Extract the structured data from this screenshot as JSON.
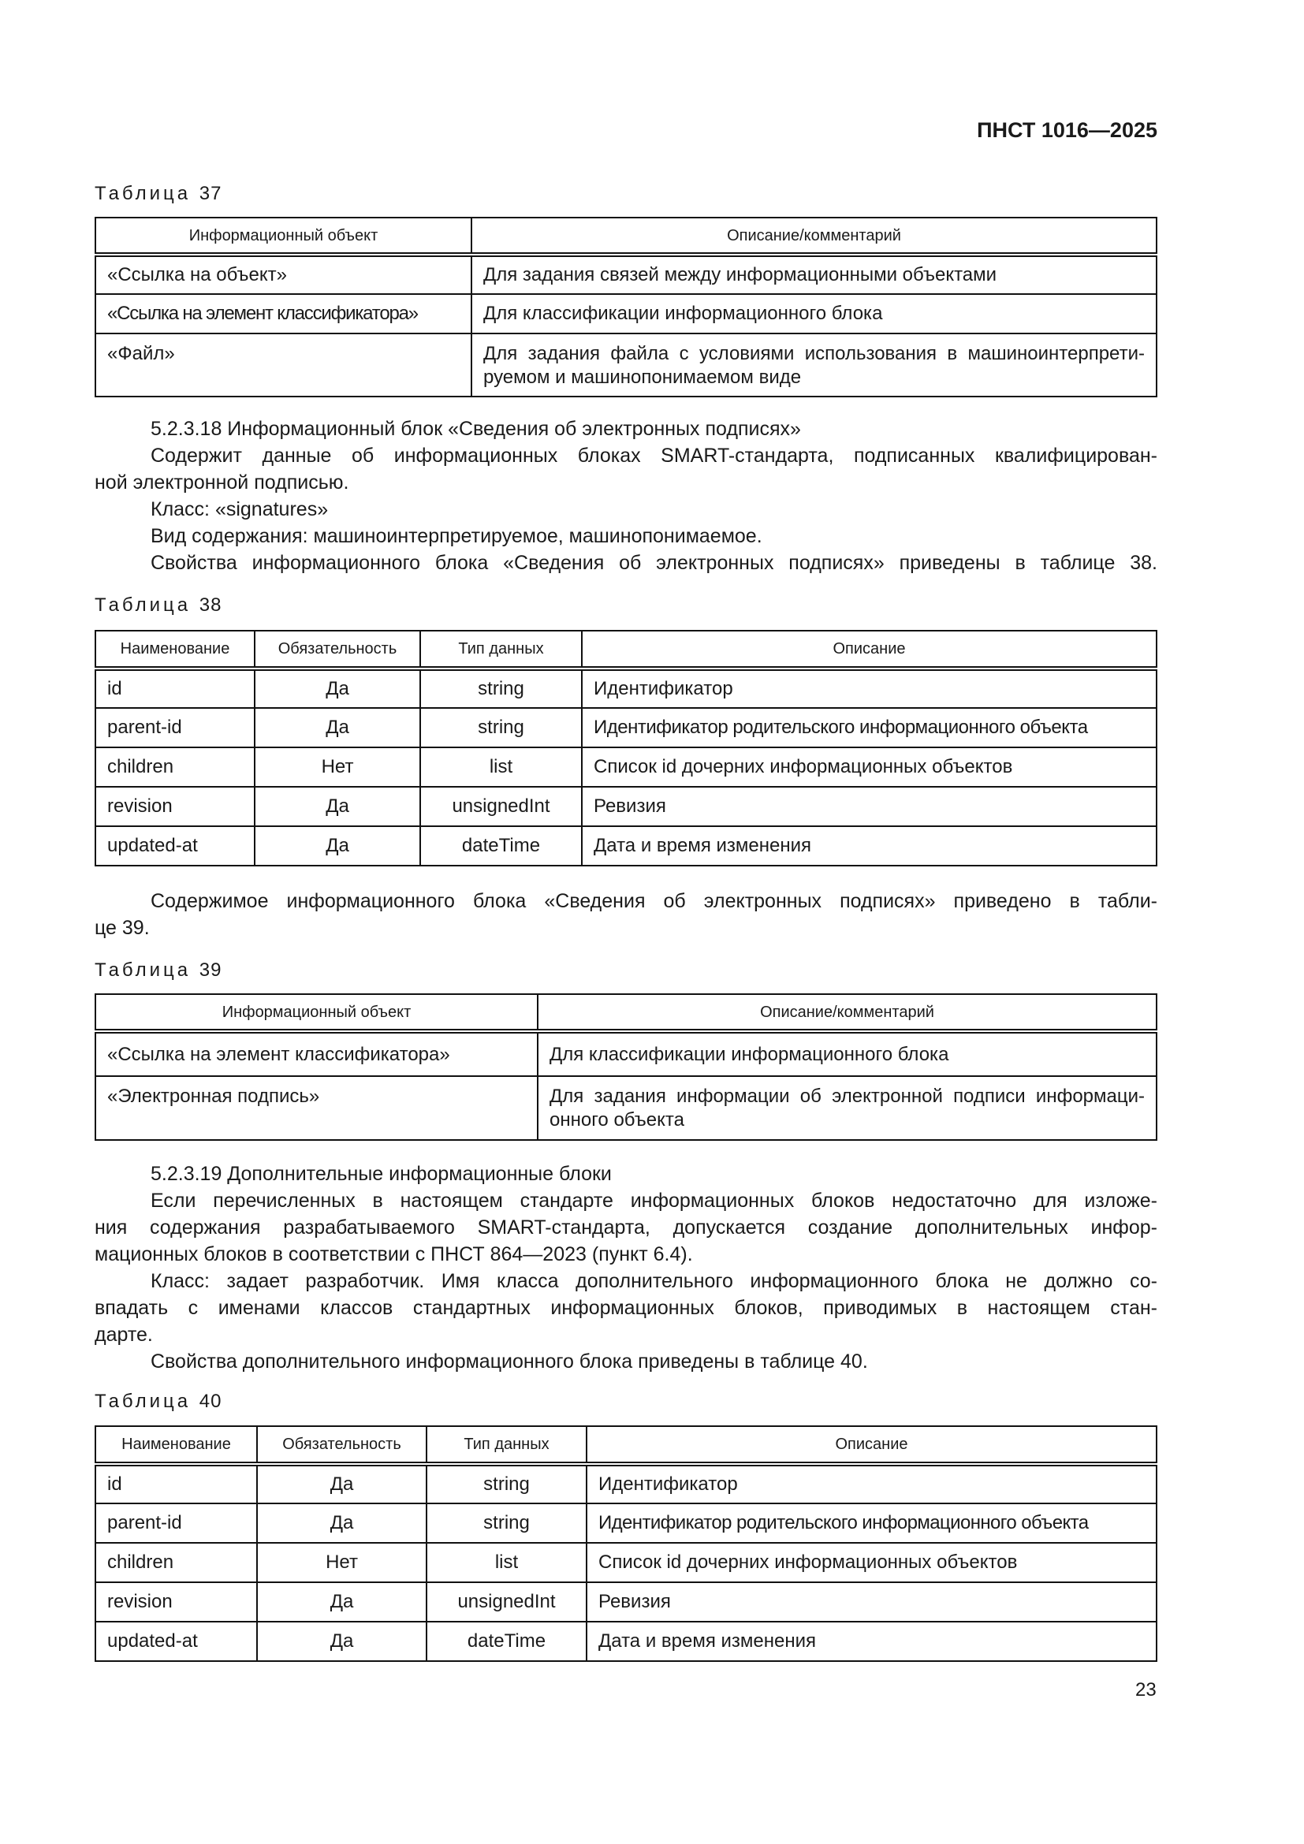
{
  "header": {
    "doc_id": "ПНСТ 1016—2025"
  },
  "table37": {
    "label": "Таблица",
    "number": "37",
    "columns": [
      "Информационный объект",
      "Описание/комментарий"
    ],
    "rows": [
      [
        "«Ссылка на объект»",
        "Для задания связей между информационными объектами"
      ],
      [
        "«Ссылка на элемент классификатора»",
        "Для классификации информационного блока"
      ],
      [
        "«Файл»",
        "Для задания файла с условиями использования в машиноинтерпрети-руемом и машинопонимаемом виде"
      ]
    ]
  },
  "section18": {
    "lines": [
      "5.2.3.18 Информационный блок «Сведения об электронных подписях»",
      "Содержит данные об информационных блоках SMART-стандарта, подписанных квалифицирован-",
      "ной электронной подписью.",
      "Класс: «signatures»",
      "Вид содержания: машиноинтерпретируемое, машинопонимаемое.",
      "Свойства информационного блока «Сведения об электронных подписях» приведены в таблице 38."
    ]
  },
  "table38": {
    "label": "Таблица",
    "number": "38",
    "columns": [
      "Наименование",
      "Обязательность",
      "Тип данных",
      "Описание"
    ],
    "rows": [
      [
        "id",
        "Да",
        "string",
        "Идентификатор"
      ],
      [
        "parent-id",
        "Да",
        "string",
        "Идентификатор родительского информационного объекта"
      ],
      [
        "children",
        "Нет",
        "list",
        "Список id дочерних информационных объектов"
      ],
      [
        "revision",
        "Да",
        "unsignedInt",
        "Ревизия"
      ],
      [
        "updated-at",
        "Да",
        "dateTime",
        "Дата и время изменения"
      ]
    ]
  },
  "para39": {
    "lines": [
      "Содержимое информационного блока «Сведения об электронных подписях» приведено в табли-",
      "це 39."
    ]
  },
  "table39": {
    "label": "Таблица",
    "number": "39",
    "columns": [
      "Информационный объект",
      "Описание/комментарий"
    ],
    "rows": [
      [
        "«Ссылка на элемент классификатора»",
        "Для классификации информационного блока"
      ],
      [
        "«Электронная подпись»",
        "Для задания информации об электронной подписи информаци-онного объекта"
      ]
    ]
  },
  "section19": {
    "lines": [
      "5.2.3.19 Дополнительные информационные блоки",
      "Если перечисленных в настоящем стандарте информационных блоков недостаточно для изложе-",
      "ния содержания разрабатываемого SMART-стандарта, допускается создание дополнительных инфор-",
      "мационных блоков в соответствии с ПНСТ 864—2023 (пункт 6.4).",
      "Класс: задает разработчик. Имя класса дополнительного информационного блока не должно со-",
      "впадать с именами классов стандартных информационных блоков, приводимых в настоящем стан-",
      "дарте.",
      "Свойства дополнительного информационного блока приведены в таблице 40."
    ]
  },
  "table40": {
    "label": "Таблица",
    "number": "40",
    "columns": [
      "Наименование",
      "Обязательность",
      "Тип данных",
      "Описание"
    ],
    "rows": [
      [
        "id",
        "Да",
        "string",
        "Идентификатор"
      ],
      [
        "parent-id",
        "Да",
        "string",
        "Идентификатор родительского информационного объекта"
      ],
      [
        "children",
        "Нет",
        "list",
        "Список id дочерних информационных объектов"
      ],
      [
        "revision",
        "Да",
        "unsignedInt",
        "Ревизия"
      ],
      [
        "updated-at",
        "Да",
        "dateTime",
        "Дата и время изменения"
      ]
    ]
  },
  "footer": {
    "page_number": "23"
  }
}
